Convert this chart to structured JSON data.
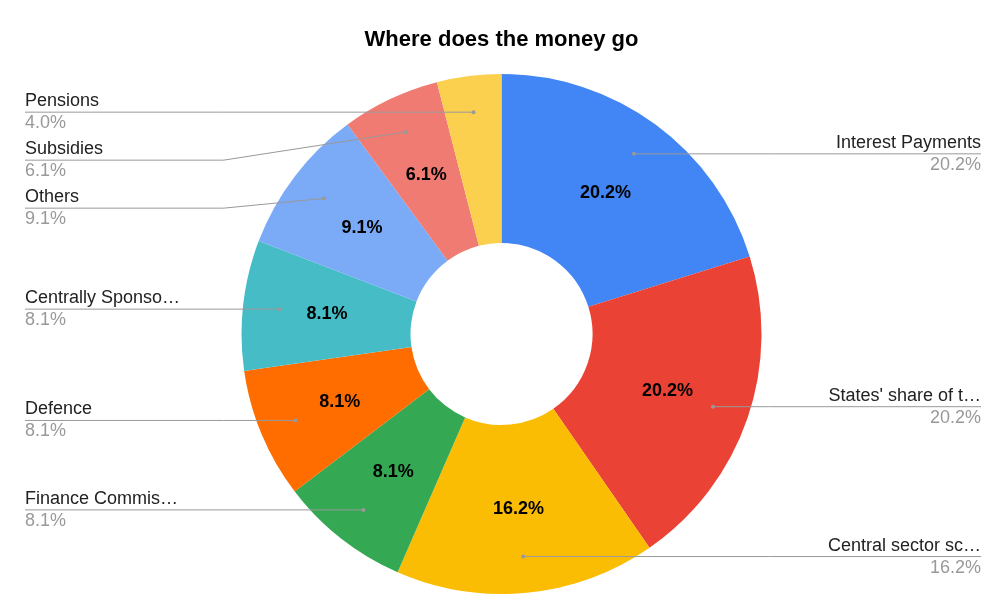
{
  "chart_data": {
    "type": "donut",
    "title": "Where does the money go",
    "categories": [
      "Interest Payments",
      "States' share of t…",
      "Central sector sc…",
      "Finance Commis…",
      "Defence",
      "Centrally Sponso…",
      "Others",
      "Subsidies",
      "Pensions"
    ],
    "values": [
      20.2,
      20.2,
      16.2,
      8.1,
      8.1,
      8.1,
      9.1,
      6.1,
      4.0
    ],
    "value_labels": [
      "20.2%",
      "20.2%",
      "16.2%",
      "8.1%",
      "8.1%",
      "8.1%",
      "9.1%",
      "6.1%",
      "4.0%"
    ],
    "colors": [
      "#4285f4",
      "#ea4335",
      "#fbbc04",
      "#34a853",
      "#ff6d01",
      "#46bdc6",
      "#7baaf7",
      "#f07b72",
      "#fcd04f"
    ],
    "legend": false
  }
}
